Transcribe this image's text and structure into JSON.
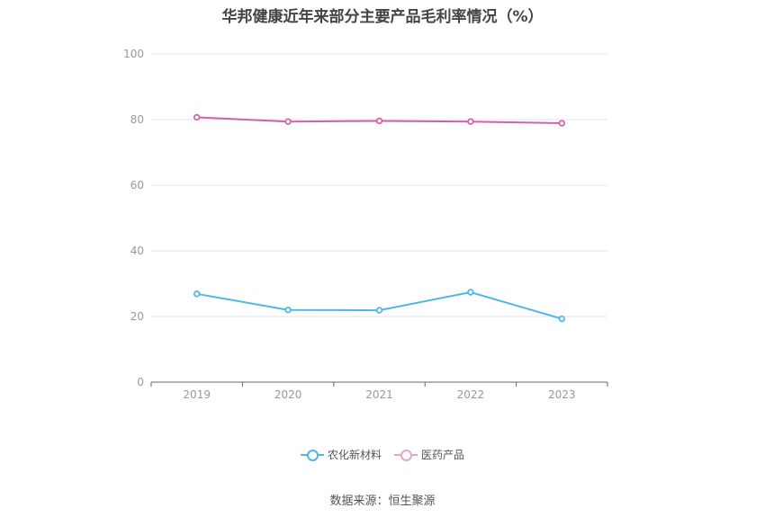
{
  "chart_data": {
    "type": "line",
    "title": "华邦健康近年来部分主要产品毛利率情况（%）",
    "categories": [
      "2019",
      "2020",
      "2021",
      "2022",
      "2023"
    ],
    "y_ticks": [
      "0",
      "20",
      "40",
      "60",
      "80",
      "100"
    ],
    "ylim": [
      0,
      100
    ],
    "grid": true,
    "legend_position": "bottom",
    "series": [
      {
        "name": "农化新材料",
        "color": "#4db8e8",
        "values": [
          26.9,
          22.0,
          21.9,
          27.4,
          19.3
        ]
      },
      {
        "name": "医药产品",
        "color": "#d262a8",
        "legend_color": "#e6a3cc",
        "values": [
          80.7,
          79.4,
          79.6,
          79.4,
          78.9
        ]
      }
    ]
  },
  "source": "数据来源：恒生聚源"
}
